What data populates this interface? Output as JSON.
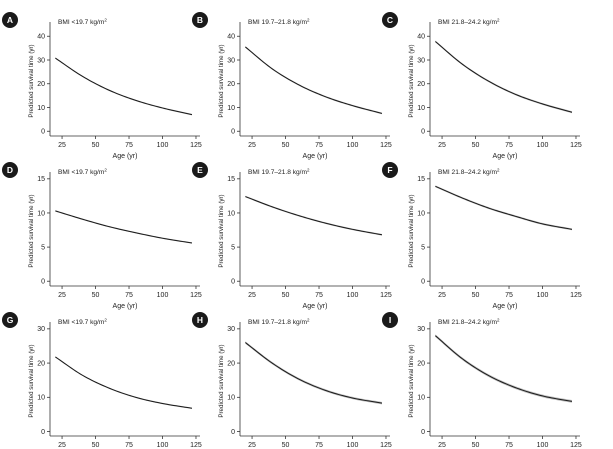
{
  "chart_data": [
    {
      "id": "A",
      "type": "line",
      "title_prefix": "BMI <19.7 kg/m",
      "title_sup": "2",
      "xlabel": "Age (yr)",
      "ylabel": "Predicted survival time (yr)",
      "xlim": [
        16,
        128
      ],
      "ylim": [
        -2,
        46
      ],
      "xticks": [
        25,
        50,
        75,
        100,
        125
      ],
      "yticks": [
        0,
        10,
        20,
        30,
        40
      ],
      "x": [
        20,
        40,
        60,
        80,
        100,
        122
      ],
      "y": [
        30.8,
        23.2,
        17.3,
        13,
        9.8,
        7
      ],
      "ci_halfwidth": 0.3
    },
    {
      "id": "B",
      "type": "line",
      "title_prefix": "BMI 19.7–21.8 kg/m",
      "title_sup": "2",
      "xlabel": "Age (yr)",
      "ylabel": "Predicted survival time (yr)",
      "xlim": [
        16,
        128
      ],
      "ylim": [
        -2,
        46
      ],
      "xticks": [
        25,
        50,
        75,
        100,
        125
      ],
      "yticks": [
        0,
        10,
        20,
        30,
        40
      ],
      "x": [
        20,
        40,
        60,
        80,
        100,
        122
      ],
      "y": [
        35.5,
        26.3,
        19.5,
        14.5,
        10.8,
        7.5
      ],
      "ci_halfwidth": 0.35
    },
    {
      "id": "C",
      "type": "line",
      "title_prefix": "BMI 21.8–24.2 kg/m",
      "title_sup": "2",
      "xlabel": "Age (yr)",
      "ylabel": "Predicted survival time (yr)",
      "xlim": [
        16,
        128
      ],
      "ylim": [
        -2,
        46
      ],
      "xticks": [
        25,
        50,
        75,
        100,
        125
      ],
      "yticks": [
        0,
        10,
        20,
        30,
        40
      ],
      "x": [
        20,
        40,
        60,
        80,
        100,
        122
      ],
      "y": [
        37.8,
        28.3,
        21,
        15.5,
        11.5,
        8
      ],
      "ci_halfwidth": 0.4
    },
    {
      "id": "D",
      "type": "line",
      "title_prefix": "BMI <19.7 kg/m",
      "title_sup": "2",
      "xlabel": "Age (yr)",
      "ylabel": "Predicted survival time (yr)",
      "xlim": [
        16,
        128
      ],
      "ylim": [
        -0.7,
        16
      ],
      "xticks": [
        25,
        50,
        75,
        100,
        125
      ],
      "yticks": [
        0,
        5,
        10,
        15
      ],
      "x": [
        20,
        40,
        60,
        80,
        100,
        122
      ],
      "y": [
        10.3,
        9.1,
        8,
        7.1,
        6.3,
        5.6
      ],
      "ci_halfwidth": 0.1
    },
    {
      "id": "E",
      "type": "line",
      "title_prefix": "BMI 19.7–21.8 kg/m",
      "title_sup": "2",
      "xlabel": "Age (yr)",
      "ylabel": "Predicted survival time (yr)",
      "xlim": [
        16,
        128
      ],
      "ylim": [
        -0.7,
        16
      ],
      "xticks": [
        25,
        50,
        75,
        100,
        125
      ],
      "yticks": [
        0,
        5,
        10,
        15
      ],
      "x": [
        20,
        40,
        60,
        80,
        100,
        122
      ],
      "y": [
        12.4,
        10.9,
        9.6,
        8.5,
        7.6,
        6.8
      ],
      "ci_halfwidth": 0.12
    },
    {
      "id": "F",
      "type": "line",
      "title_prefix": "BMI 21.8–24.2 kg/m",
      "title_sup": "2",
      "xlabel": "Age (yr)",
      "ylabel": "Predicted survival time (yr)",
      "xlim": [
        16,
        128
      ],
      "ylim": [
        -0.7,
        16
      ],
      "xticks": [
        25,
        50,
        75,
        100,
        125
      ],
      "yticks": [
        0,
        5,
        10,
        15
      ],
      "x": [
        20,
        40,
        60,
        80,
        100,
        122
      ],
      "y": [
        13.9,
        12.2,
        10.7,
        9.5,
        8.4,
        7.6
      ],
      "ci_halfwidth": 0.14
    },
    {
      "id": "G",
      "type": "line",
      "title_prefix": "BMI <19.7 kg/m",
      "title_sup": "2",
      "xlabel": "Age (yr)",
      "ylabel": "Predicted survival time (yr)",
      "xlim": [
        16,
        128
      ],
      "ylim": [
        -1.3,
        32
      ],
      "xticks": [
        25,
        50,
        75,
        100,
        125
      ],
      "yticks": [
        0,
        10,
        20,
        30
      ],
      "x": [
        20,
        40,
        60,
        80,
        100,
        122
      ],
      "y": [
        21.8,
        16.5,
        12.7,
        10,
        8.2,
        6.8
      ],
      "ci_halfwidth": 0.2
    },
    {
      "id": "H",
      "type": "line",
      "title_prefix": "BMI 19.7–21.8 kg/m",
      "title_sup": "2",
      "xlabel": "Age (yr)",
      "ylabel": "Predicted survival time (yr)",
      "xlim": [
        16,
        128
      ],
      "ylim": [
        -1.3,
        32
      ],
      "xticks": [
        25,
        50,
        75,
        100,
        125
      ],
      "yticks": [
        0,
        10,
        20,
        30
      ],
      "x": [
        20,
        40,
        60,
        80,
        100,
        122
      ],
      "y": [
        26,
        20,
        15.3,
        12,
        9.8,
        8.3
      ],
      "ci_halfwidth": 0.35
    },
    {
      "id": "I",
      "type": "line",
      "title_prefix": "BMI 21.8–24.2 kg/m",
      "title_sup": "2",
      "xlabel": "Age (yr)",
      "ylabel": "Predicted survival time (yr)",
      "xlim": [
        16,
        128
      ],
      "ylim": [
        -1.3,
        32
      ],
      "xticks": [
        25,
        50,
        75,
        100,
        125
      ],
      "yticks": [
        0,
        10,
        20,
        30
      ],
      "x": [
        20,
        40,
        60,
        80,
        100,
        122
      ],
      "y": [
        28,
        21.3,
        16.3,
        12.8,
        10.4,
        8.8
      ],
      "ci_halfwidth": 0.4
    }
  ],
  "colors": {
    "line": "#1a1a1a",
    "band": "#bdbdbd",
    "badge": "#1a1a1a",
    "axis": "#333333"
  }
}
